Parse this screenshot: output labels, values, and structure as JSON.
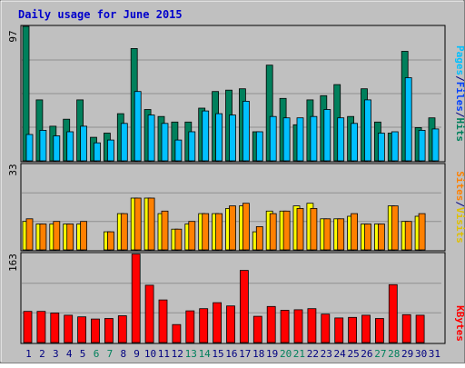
{
  "chart_data": {
    "type": "bar",
    "title": "Daily usage for June 2015",
    "categories": [
      "1",
      "2",
      "3",
      "4",
      "5",
      "6",
      "7",
      "8",
      "9",
      "10",
      "11",
      "12",
      "13",
      "14",
      "15",
      "16",
      "17",
      "18",
      "19",
      "20",
      "21",
      "22",
      "23",
      "24",
      "25",
      "26",
      "27",
      "28",
      "29",
      "30",
      "31"
    ],
    "weekend_days": [
      "6",
      "7",
      "13",
      "14",
      "20",
      "21",
      "27",
      "28"
    ],
    "panels": [
      {
        "id": "top",
        "ymax": 97,
        "ymax_label": "97",
        "ylabel_parts": [
          "Pages",
          "/",
          "Files",
          "/",
          "Hits"
        ],
        "series": [
          {
            "name": "Hits",
            "values": [
              97,
              44,
              25,
              30,
              44,
              17,
              20,
              34,
              81,
              37,
              32,
              28,
              28,
              38,
              50,
              51,
              52,
              21,
              69,
              45,
              26,
              44,
              47,
              55,
              32,
              52,
              28,
              20,
              79,
              24,
              31
            ]
          },
          {
            "name": "Files",
            "values": [
              19,
              22,
              18,
              21,
              25,
              13,
              15,
              27,
              50,
              33,
              27,
              15,
              21,
              36,
              34,
              33,
              43,
              21,
              32,
              31,
              31,
              32,
              37,
              31,
              27,
              44,
              20,
              21,
              60,
              22,
              23
            ]
          },
          {
            "name": "Pages",
            "values": [
              0,
              0,
              0,
              0,
              0,
              0,
              0,
              0,
              0,
              0,
              0,
              0,
              0,
              0,
              0,
              0,
              0,
              0,
              0,
              0,
              0,
              0,
              0,
              0,
              0,
              0,
              0,
              0,
              0,
              0,
              0
            ]
          }
        ]
      },
      {
        "id": "middle",
        "ymax": 33,
        "ymax_label": "33",
        "ylabel_parts": [
          "Sites",
          "/",
          "Visits"
        ],
        "series": [
          {
            "name": "Visits",
            "values": [
              11,
              10,
              10,
              10,
              10,
              0,
              7,
              14,
              20,
              20,
              14,
              8,
              10,
              14,
              14,
              16,
              17,
              7,
              15,
              15,
              17,
              18,
              12,
              12,
              13,
              10,
              10,
              17,
              11,
              13,
              0
            ]
          },
          {
            "name": "Sites",
            "values": [
              12,
              10,
              11,
              10,
              11,
              0,
              7,
              14,
              20,
              20,
              15,
              8,
              11,
              14,
              14,
              17,
              18,
              9,
              14,
              15,
              16,
              16,
              12,
              12,
              14,
              10,
              10,
              17,
              11,
              14,
              0
            ]
          }
        ]
      },
      {
        "id": "bottom",
        "ymax": 163,
        "ymax_label": "163",
        "ylabel_parts": [
          "KBytes"
        ],
        "series": [
          {
            "name": "KBytes",
            "values": [
              57,
              57,
              54,
              50,
              47,
              43,
              44,
              49,
              162,
              105,
              78,
              33,
              58,
              62,
              73,
              67,
              132,
              48,
              66,
              59,
              60,
              62,
              52,
              45,
              46,
              50,
              44,
              106,
              51,
              50,
              0
            ]
          }
        ]
      }
    ]
  },
  "colors": {
    "background": "#c0c0c0",
    "frame_outer": "#ffffff",
    "title": "#0000cc",
    "weekday_label": "#000080",
    "weekend_label": "#00805c",
    "hits": "#00805c",
    "files": "#00c0ff",
    "pages": "#0040ff",
    "visits": "#ffff00",
    "sites": "#ff8000",
    "kbytes": "#ff0000",
    "gridline": "#909090"
  }
}
